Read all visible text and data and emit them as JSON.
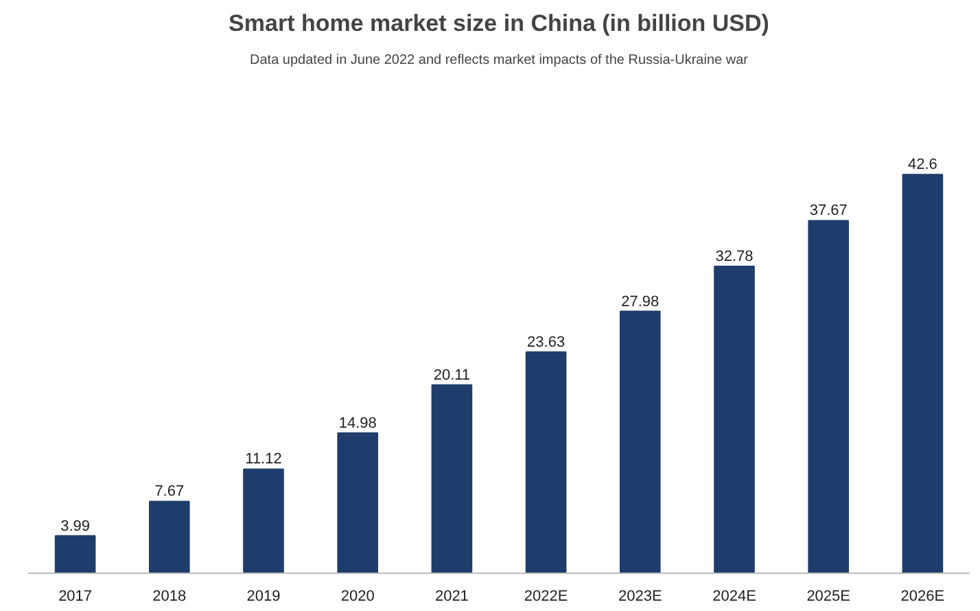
{
  "chart_data": {
    "type": "bar",
    "title": "Smart home market size in China (in billion USD)",
    "subtitle": "Data updated in June 2022 and reflects market impacts of the Russia-Ukraine war",
    "categories": [
      "2017",
      "2018",
      "2019",
      "2020",
      "2021",
      "2022E",
      "2023E",
      "2024E",
      "2025E",
      "2026E"
    ],
    "values": [
      3.99,
      7.67,
      11.12,
      14.98,
      20.11,
      23.63,
      27.98,
      32.78,
      37.67,
      42.6
    ],
    "color": "#1f3d6c",
    "data_labels": true
  }
}
